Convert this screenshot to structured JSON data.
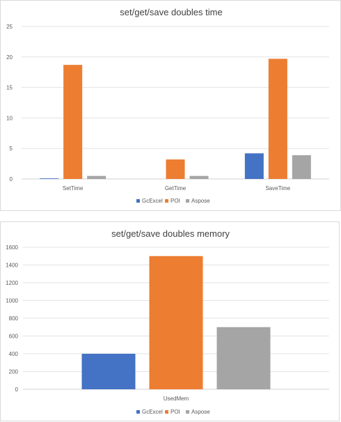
{
  "chart_data": [
    {
      "type": "bar",
      "title": "set/get/save doubles time",
      "categories": [
        "SetTime",
        "GetTime",
        "SaveTime"
      ],
      "series": [
        {
          "name": "GcExcel",
          "values": [
            0.1,
            0,
            4.2
          ],
          "color": "#4472C4"
        },
        {
          "name": "POI",
          "values": [
            18.7,
            3.2,
            19.7
          ],
          "color": "#ED7D31"
        },
        {
          "name": "Aspose",
          "values": [
            0.5,
            0.5,
            3.9
          ],
          "color": "#A5A5A5"
        }
      ],
      "yticks": [
        0,
        5,
        10,
        15,
        20,
        25
      ],
      "ylim": [
        0,
        25
      ],
      "grid": true,
      "legend": "bottom",
      "xlabel": "",
      "ylabel": ""
    },
    {
      "type": "bar",
      "title": "set/get/save doubles memory",
      "categories": [
        "UsedMem"
      ],
      "series": [
        {
          "name": "GcExcel",
          "values": [
            400
          ],
          "color": "#4472C4"
        },
        {
          "name": "POI",
          "values": [
            1500
          ],
          "color": "#ED7D31"
        },
        {
          "name": "Aspose",
          "values": [
            700
          ],
          "color": "#A5A5A5"
        }
      ],
      "yticks": [
        0,
        200,
        400,
        600,
        800,
        1000,
        1200,
        1400,
        1600
      ],
      "ylim": [
        0,
        1600
      ],
      "grid": true,
      "legend": "bottom",
      "xlabel": "",
      "ylabel": ""
    }
  ]
}
